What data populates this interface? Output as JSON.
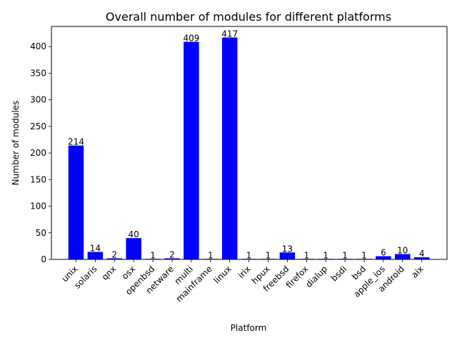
{
  "chart_data": {
    "type": "bar",
    "title": "Overall number of modules for different platforms",
    "xlabel": "Platform",
    "ylabel": "Number of modules",
    "categories": [
      "unix",
      "solaris",
      "qnx",
      "osx",
      "openbsd",
      "netware",
      "multi",
      "mainframe",
      "linux",
      "irix",
      "hpux",
      "freebsd",
      "firefox",
      "dialup",
      "bsdi",
      "bsd",
      "apple_ios",
      "android",
      "aix"
    ],
    "values": [
      214,
      14,
      2,
      40,
      1,
      2,
      409,
      1,
      417,
      1,
      1,
      13,
      1,
      1,
      1,
      1,
      6,
      10,
      4
    ],
    "data_labels": [
      "214",
      "14",
      "2",
      "40",
      "1",
      "2",
      "409",
      "1",
      "417",
      "1",
      "1",
      "13",
      "1",
      "1",
      "1",
      "1",
      "6",
      "10",
      "4"
    ],
    "yticks": [
      0,
      50,
      100,
      150,
      200,
      250,
      300,
      350,
      400
    ],
    "ylim": [
      0,
      437.85
    ],
    "bar_color": "#0000ff",
    "grid": false,
    "legend": false
  }
}
